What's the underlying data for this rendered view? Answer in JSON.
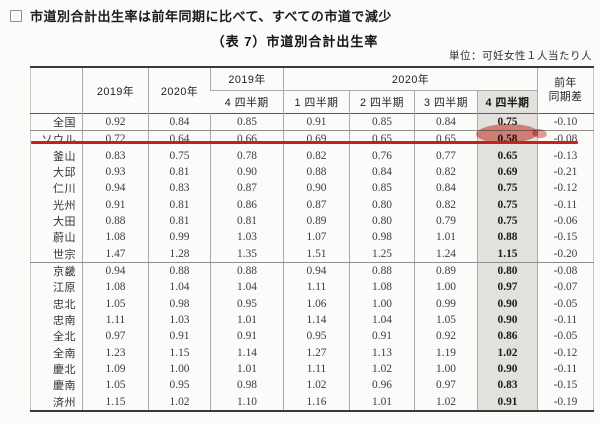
{
  "page": {
    "heading": "市道別合計出生率は前年同期に比べて、すべての市道で減少",
    "table_title": "（表 7）市道別合計出生率",
    "unit_label": "単位：可妊女性１人当たり人"
  },
  "table": {
    "headers": {
      "year_2019": "2019年",
      "year_2020": "2020年",
      "group_2019": "2019年",
      "group_2019_sub": "4 四半期",
      "group_2020": "2020年",
      "group_2020_subs": [
        "1 四半期",
        "2 四半期",
        "3 四半期",
        "4 四半期"
      ],
      "diff_line1": "前年",
      "diff_line2": "同期差"
    },
    "rows": [
      {
        "region": "全国",
        "y2019": "0.92",
        "y2020": "0.84",
        "q4_2019": "0.85",
        "q1": "0.91",
        "q2": "0.85",
        "q3": "0.84",
        "q4": "0.75",
        "diff": "-0.10"
      },
      {
        "region": "ソウル",
        "y2019": "0.72",
        "y2020": "0.64",
        "q4_2019": "0.66",
        "q1": "0.69",
        "q2": "0.65",
        "q3": "0.65",
        "q4": "0.58",
        "diff": "-0.08"
      },
      {
        "region": "釜山",
        "y2019": "0.83",
        "y2020": "0.75",
        "q4_2019": "0.78",
        "q1": "0.82",
        "q2": "0.76",
        "q3": "0.77",
        "q4": "0.65",
        "diff": "-0.13"
      },
      {
        "region": "大邱",
        "y2019": "0.93",
        "y2020": "0.81",
        "q4_2019": "0.90",
        "q1": "0.88",
        "q2": "0.84",
        "q3": "0.82",
        "q4": "0.69",
        "diff": "-0.21"
      },
      {
        "region": "仁川",
        "y2019": "0.94",
        "y2020": "0.83",
        "q4_2019": "0.87",
        "q1": "0.90",
        "q2": "0.85",
        "q3": "0.84",
        "q4": "0.75",
        "diff": "-0.12"
      },
      {
        "region": "光州",
        "y2019": "0.91",
        "y2020": "0.81",
        "q4_2019": "0.86",
        "q1": "0.87",
        "q2": "0.80",
        "q3": "0.82",
        "q4": "0.75",
        "diff": "-0.11"
      },
      {
        "region": "大田",
        "y2019": "0.88",
        "y2020": "0.81",
        "q4_2019": "0.81",
        "q1": "0.89",
        "q2": "0.80",
        "q3": "0.79",
        "q4": "0.75",
        "diff": "-0.06"
      },
      {
        "region": "蔚山",
        "y2019": "1.08",
        "y2020": "0.99",
        "q4_2019": "1.03",
        "q1": "1.07",
        "q2": "0.98",
        "q3": "1.01",
        "q4": "0.88",
        "diff": "-0.15"
      },
      {
        "region": "世宗",
        "y2019": "1.47",
        "y2020": "1.28",
        "q4_2019": "1.35",
        "q1": "1.51",
        "q2": "1.25",
        "q3": "1.24",
        "q4": "1.15",
        "diff": "-0.20"
      },
      {
        "region": "京畿",
        "y2019": "0.94",
        "y2020": "0.88",
        "q4_2019": "0.88",
        "q1": "0.94",
        "q2": "0.88",
        "q3": "0.89",
        "q4": "0.80",
        "diff": "-0.08"
      },
      {
        "region": "江原",
        "y2019": "1.08",
        "y2020": "1.04",
        "q4_2019": "1.04",
        "q1": "1.11",
        "q2": "1.08",
        "q3": "1.00",
        "q4": "0.97",
        "diff": "-0.07"
      },
      {
        "region": "忠北",
        "y2019": "1.05",
        "y2020": "0.98",
        "q4_2019": "0.95",
        "q1": "1.06",
        "q2": "1.00",
        "q3": "0.99",
        "q4": "0.90",
        "diff": "-0.05"
      },
      {
        "region": "忠南",
        "y2019": "1.11",
        "y2020": "1.03",
        "q4_2019": "1.01",
        "q1": "1.14",
        "q2": "1.04",
        "q3": "1.05",
        "q4": "0.90",
        "diff": "-0.11"
      },
      {
        "region": "全北",
        "y2019": "0.97",
        "y2020": "0.91",
        "q4_2019": "0.91",
        "q1": "0.95",
        "q2": "0.91",
        "q3": "0.92",
        "q4": "0.86",
        "diff": "-0.05"
      },
      {
        "region": "全南",
        "y2019": "1.23",
        "y2020": "1.15",
        "q4_2019": "1.14",
        "q1": "1.27",
        "q2": "1.13",
        "q3": "1.19",
        "q4": "1.02",
        "diff": "-0.12"
      },
      {
        "region": "慶北",
        "y2019": "1.09",
        "y2020": "1.00",
        "q4_2019": "1.01",
        "q1": "1.11",
        "q2": "1.02",
        "q3": "1.00",
        "q4": "0.90",
        "diff": "-0.11"
      },
      {
        "region": "慶南",
        "y2019": "1.05",
        "y2020": "0.95",
        "q4_2019": "0.98",
        "q1": "1.02",
        "q2": "0.96",
        "q3": "0.97",
        "q4": "0.83",
        "diff": "-0.15"
      },
      {
        "region": "済州",
        "y2019": "1.15",
        "y2020": "1.02",
        "q4_2019": "1.10",
        "q1": "1.16",
        "q2": "1.01",
        "q3": "1.02",
        "q4": "0.91",
        "diff": "-0.19"
      }
    ],
    "group_divider_after_rows": [
      0,
      8
    ]
  },
  "annotations": {
    "red_underline_row": "ソウル",
    "highlighted_value": "0.58",
    "highlight_color": "#e07d72",
    "red_line_color": "#c8201a",
    "q4_column_bg": "#e2e1dd"
  }
}
